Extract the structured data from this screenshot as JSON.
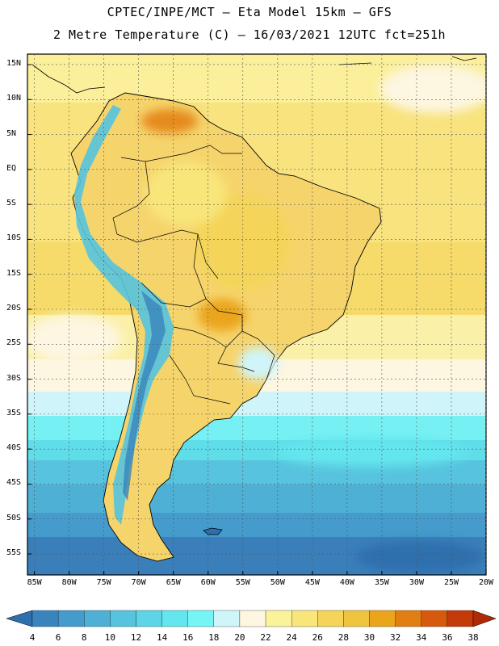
{
  "title": {
    "line1": "CPTEC/INPE/MCT –  Eta Model 15km – GFS",
    "line2": "2 Metre Temperature (C) – 16/03/2021 12UTC fct=251h"
  },
  "map": {
    "lat_labels": [
      "15N",
      "10N",
      "5N",
      "EQ",
      "5S",
      "10S",
      "15S",
      "20S",
      "25S",
      "30S",
      "35S",
      "40S",
      "45S",
      "50S",
      "55S"
    ],
    "lat_values": [
      15,
      10,
      5,
      0,
      -5,
      -10,
      -15,
      -20,
      -25,
      -30,
      -35,
      -40,
      -45,
      -50,
      -55
    ],
    "lon_labels": [
      "85W",
      "80W",
      "75W",
      "70W",
      "65W",
      "60W",
      "55W",
      "50W",
      "45W",
      "40W",
      "35W",
      "30W",
      "25W",
      "20W"
    ],
    "lon_values": [
      -85,
      -80,
      -75,
      -70,
      -65,
      -60,
      -55,
      -50,
      -45,
      -40,
      -35,
      -30,
      -25,
      -20
    ],
    "extent": {
      "lon": [
        -86,
        -20
      ],
      "lat": [
        -58,
        16.5
      ]
    }
  },
  "colorbar": {
    "labels": [
      "4",
      "6",
      "8",
      "10",
      "12",
      "14",
      "16",
      "18",
      "20",
      "22",
      "24",
      "26",
      "28",
      "30",
      "32",
      "34",
      "36",
      "38"
    ],
    "colors": [
      "#2f6fae",
      "#3a84bd",
      "#459bcb",
      "#4fb0d6",
      "#57c3de",
      "#5dd5e6",
      "#63e6ee",
      "#76f5f5",
      "#cff5fb",
      "#fdf7e1",
      "#fbf39a",
      "#f8e67a",
      "#f4d55a",
      "#efc540",
      "#eaa51b",
      "#e27f12",
      "#d75a0c",
      "#c43a08",
      "#b02a05"
    ]
  }
}
